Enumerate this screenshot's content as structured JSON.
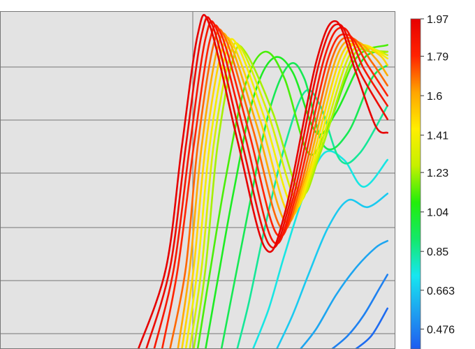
{
  "chart_data": {
    "type": "line",
    "title": "",
    "xlabel": "",
    "ylabel": "",
    "grid": true,
    "color_scale": {
      "label_values": [
        "1.97",
        "1.79",
        "1.6",
        "1.41",
        "1.23",
        "1.04",
        "0.85",
        "0.663",
        "0.476"
      ],
      "min": 0.38,
      "max": 1.97,
      "colors": [
        "#1e5cf0",
        "#1ea0f0",
        "#17e6f0",
        "#14e86a",
        "#22ee0a",
        "#c6f000",
        "#ffee00",
        "#ffa400",
        "#ff2200",
        "#e60000"
      ]
    },
    "series": [
      {
        "value": 1.97,
        "points": [
          [
            0.35,
            0.0
          ],
          [
            0.42,
            0.24
          ],
          [
            0.46,
            0.6
          ],
          [
            0.5,
            0.93
          ],
          [
            0.53,
            0.96
          ],
          [
            0.6,
            0.62
          ],
          [
            0.67,
            0.3
          ],
          [
            0.72,
            0.4
          ],
          [
            0.8,
            0.85
          ],
          [
            0.85,
            0.97
          ],
          [
            0.9,
            0.82
          ],
          [
            0.95,
            0.66
          ],
          [
            0.98,
            0.64
          ]
        ]
      },
      {
        "value": 1.92,
        "points": [
          [
            0.37,
            0.0
          ],
          [
            0.43,
            0.24
          ],
          [
            0.47,
            0.6
          ],
          [
            0.51,
            0.93
          ],
          [
            0.54,
            0.95
          ],
          [
            0.61,
            0.62
          ],
          [
            0.68,
            0.31
          ],
          [
            0.73,
            0.42
          ],
          [
            0.81,
            0.86
          ],
          [
            0.86,
            0.96
          ],
          [
            0.91,
            0.82
          ],
          [
            0.98,
            0.68
          ]
        ]
      },
      {
        "value": 1.85,
        "points": [
          [
            0.39,
            0.0
          ],
          [
            0.44,
            0.24
          ],
          [
            0.48,
            0.6
          ],
          [
            0.52,
            0.92
          ],
          [
            0.55,
            0.94
          ],
          [
            0.62,
            0.63
          ],
          [
            0.69,
            0.32
          ],
          [
            0.74,
            0.44
          ],
          [
            0.82,
            0.86
          ],
          [
            0.87,
            0.95
          ],
          [
            0.92,
            0.83
          ],
          [
            0.98,
            0.72
          ]
        ]
      },
      {
        "value": 1.79,
        "points": [
          [
            0.41,
            0.0
          ],
          [
            0.45,
            0.24
          ],
          [
            0.49,
            0.6
          ],
          [
            0.53,
            0.91
          ],
          [
            0.56,
            0.93
          ],
          [
            0.63,
            0.64
          ],
          [
            0.7,
            0.34
          ],
          [
            0.75,
            0.46
          ],
          [
            0.83,
            0.86
          ],
          [
            0.88,
            0.93
          ],
          [
            0.93,
            0.84
          ],
          [
            0.98,
            0.75
          ]
        ]
      },
      {
        "value": 1.7,
        "points": [
          [
            0.43,
            0.0
          ],
          [
            0.47,
            0.24
          ],
          [
            0.5,
            0.6
          ],
          [
            0.54,
            0.9
          ],
          [
            0.57,
            0.92
          ],
          [
            0.64,
            0.65
          ],
          [
            0.71,
            0.36
          ],
          [
            0.76,
            0.48
          ],
          [
            0.84,
            0.86
          ],
          [
            0.89,
            0.92
          ],
          [
            0.94,
            0.85
          ],
          [
            0.98,
            0.78
          ]
        ]
      },
      {
        "value": 1.6,
        "points": [
          [
            0.45,
            0.0
          ],
          [
            0.48,
            0.24
          ],
          [
            0.51,
            0.6
          ],
          [
            0.55,
            0.89
          ],
          [
            0.58,
            0.91
          ],
          [
            0.65,
            0.66
          ],
          [
            0.72,
            0.38
          ],
          [
            0.77,
            0.5
          ],
          [
            0.85,
            0.86
          ],
          [
            0.9,
            0.91
          ],
          [
            0.95,
            0.86
          ],
          [
            0.98,
            0.81
          ]
        ]
      },
      {
        "value": 1.5,
        "points": [
          [
            0.46,
            0.0
          ],
          [
            0.49,
            0.24
          ],
          [
            0.52,
            0.6
          ],
          [
            0.56,
            0.88
          ],
          [
            0.59,
            0.9
          ],
          [
            0.66,
            0.67
          ],
          [
            0.73,
            0.4
          ],
          [
            0.78,
            0.52
          ],
          [
            0.86,
            0.86
          ],
          [
            0.91,
            0.9
          ],
          [
            0.96,
            0.87
          ],
          [
            0.98,
            0.84
          ]
        ]
      },
      {
        "value": 1.41,
        "points": [
          [
            0.47,
            0.0
          ],
          [
            0.5,
            0.24
          ],
          [
            0.53,
            0.6
          ],
          [
            0.57,
            0.87
          ],
          [
            0.6,
            0.9
          ],
          [
            0.67,
            0.68
          ],
          [
            0.74,
            0.42
          ],
          [
            0.79,
            0.54
          ],
          [
            0.87,
            0.86
          ],
          [
            0.92,
            0.9
          ],
          [
            0.98,
            0.86
          ]
        ]
      },
      {
        "value": 1.32,
        "points": [
          [
            0.48,
            0.0
          ],
          [
            0.51,
            0.24
          ],
          [
            0.54,
            0.6
          ],
          [
            0.58,
            0.86
          ],
          [
            0.61,
            0.89
          ],
          [
            0.68,
            0.69
          ],
          [
            0.75,
            0.44
          ],
          [
            0.8,
            0.56
          ],
          [
            0.88,
            0.86
          ],
          [
            0.93,
            0.89
          ],
          [
            0.98,
            0.87
          ]
        ]
      },
      {
        "value": 1.23,
        "points": [
          [
            0.49,
            0.0
          ],
          [
            0.52,
            0.24
          ],
          [
            0.55,
            0.6
          ],
          [
            0.59,
            0.86
          ],
          [
            0.62,
            0.88
          ],
          [
            0.69,
            0.7
          ],
          [
            0.76,
            0.46
          ],
          [
            0.81,
            0.58
          ],
          [
            0.89,
            0.86
          ],
          [
            0.94,
            0.88
          ],
          [
            0.98,
            0.88
          ]
        ]
      },
      {
        "value": 1.13,
        "points": [
          [
            0.5,
            0.0
          ],
          [
            0.53,
            0.22
          ],
          [
            0.57,
            0.5
          ],
          [
            0.62,
            0.78
          ],
          [
            0.67,
            0.88
          ],
          [
            0.72,
            0.8
          ],
          [
            0.78,
            0.58
          ],
          [
            0.83,
            0.66
          ],
          [
            0.9,
            0.86
          ],
          [
            0.98,
            0.9
          ]
        ]
      },
      {
        "value": 1.04,
        "points": [
          [
            0.52,
            0.0
          ],
          [
            0.55,
            0.2
          ],
          [
            0.59,
            0.46
          ],
          [
            0.64,
            0.74
          ],
          [
            0.69,
            0.86
          ],
          [
            0.74,
            0.82
          ],
          [
            0.8,
            0.64
          ],
          [
            0.85,
            0.7
          ],
          [
            0.92,
            0.86
          ],
          [
            0.98,
            0.88
          ]
        ]
      },
      {
        "value": 0.95,
        "points": [
          [
            0.56,
            0.0
          ],
          [
            0.59,
            0.18
          ],
          [
            0.63,
            0.42
          ],
          [
            0.68,
            0.7
          ],
          [
            0.73,
            0.84
          ],
          [
            0.77,
            0.8
          ],
          [
            0.82,
            0.6
          ],
          [
            0.88,
            0.64
          ],
          [
            0.94,
            0.8
          ],
          [
            0.98,
            0.84
          ]
        ]
      },
      {
        "value": 0.85,
        "points": [
          [
            0.6,
            0.0
          ],
          [
            0.63,
            0.14
          ],
          [
            0.67,
            0.36
          ],
          [
            0.72,
            0.6
          ],
          [
            0.77,
            0.76
          ],
          [
            0.81,
            0.72
          ],
          [
            0.86,
            0.56
          ],
          [
            0.91,
            0.58
          ],
          [
            0.98,
            0.72
          ]
        ]
      },
      {
        "value": 0.75,
        "points": [
          [
            0.64,
            0.0
          ],
          [
            0.68,
            0.12
          ],
          [
            0.72,
            0.28
          ],
          [
            0.77,
            0.46
          ],
          [
            0.82,
            0.58
          ],
          [
            0.87,
            0.56
          ],
          [
            0.92,
            0.48
          ],
          [
            0.98,
            0.56
          ]
        ]
      },
      {
        "value": 0.663,
        "points": [
          [
            0.7,
            0.0
          ],
          [
            0.74,
            0.1
          ],
          [
            0.78,
            0.22
          ],
          [
            0.83,
            0.36
          ],
          [
            0.88,
            0.44
          ],
          [
            0.93,
            0.42
          ],
          [
            0.98,
            0.46
          ]
        ]
      },
      {
        "value": 0.57,
        "points": [
          [
            0.76,
            0.0
          ],
          [
            0.8,
            0.06
          ],
          [
            0.85,
            0.16
          ],
          [
            0.9,
            0.24
          ],
          [
            0.95,
            0.3
          ],
          [
            0.98,
            0.32
          ]
        ]
      },
      {
        "value": 0.476,
        "points": [
          [
            0.84,
            0.0
          ],
          [
            0.88,
            0.04
          ],
          [
            0.92,
            0.1
          ],
          [
            0.96,
            0.18
          ],
          [
            0.98,
            0.22
          ]
        ]
      },
      {
        "value": 0.42,
        "points": [
          [
            0.9,
            0.0
          ],
          [
            0.94,
            0.04
          ],
          [
            0.98,
            0.12
          ]
        ]
      }
    ]
  }
}
